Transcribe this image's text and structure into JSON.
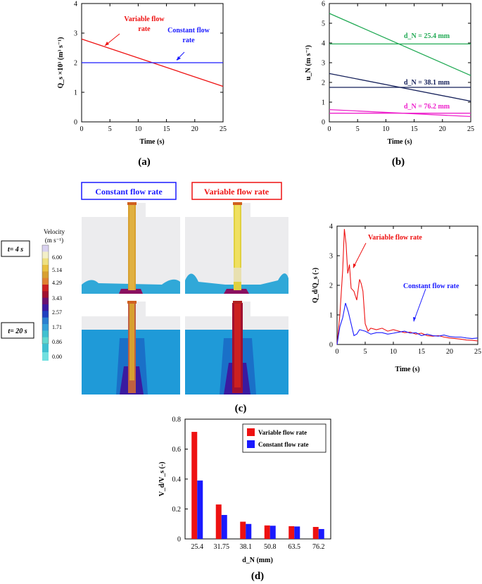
{
  "panels": {
    "a": {
      "label": "(a)"
    },
    "b": {
      "label": "(b)"
    },
    "c": {
      "label": "(c)"
    },
    "d": {
      "label": "(d)"
    }
  },
  "colors": {
    "red": "#ee1111",
    "blue": "#1a1aff",
    "green": "#22aa55",
    "navy": "#15205a",
    "magenta": "#ee22cc"
  },
  "chart_data": [
    {
      "id": "a",
      "type": "line",
      "ylabel": "Q_s ×10³ (m³ s⁻¹)",
      "xlabel": "Time (s)",
      "xlim": [
        0,
        25
      ],
      "ylim": [
        0,
        4
      ],
      "xticks": [
        "0",
        "5",
        "10",
        "15",
        "20",
        "25"
      ],
      "yticks": [
        "0",
        "1",
        "2",
        "3",
        "4"
      ],
      "series": [
        {
          "name": "Variable flow rate",
          "color": "#ee1111",
          "x": [
            0,
            25
          ],
          "y": [
            2.8,
            1.2
          ]
        },
        {
          "name": "Constant flow rate",
          "color": "#1a1aff",
          "x": [
            0,
            25
          ],
          "y": [
            2.0,
            2.0
          ]
        }
      ],
      "annotations": [
        {
          "line1": "Variable flow",
          "line2": "rate",
          "color": "#ee1111"
        },
        {
          "line1": "Constant flow",
          "line2": "rate",
          "color": "#1a1aff"
        }
      ]
    },
    {
      "id": "b",
      "type": "line",
      "ylabel": "u_N (m s⁻¹)",
      "xlabel": "Time (s)",
      "xlim": [
        0,
        25
      ],
      "ylim": [
        0,
        6
      ],
      "xticks": [
        "0",
        "5",
        "10",
        "15",
        "20",
        "25"
      ],
      "yticks": [
        "0",
        "1",
        "2",
        "3",
        "4",
        "5",
        "6"
      ],
      "series": [
        {
          "name": "25.4 variable",
          "color": "#22aa55",
          "x": [
            0,
            25
          ],
          "y": [
            5.5,
            2.35
          ]
        },
        {
          "name": "25.4 constant",
          "color": "#22aa55",
          "x": [
            0,
            25
          ],
          "y": [
            3.95,
            3.95
          ]
        },
        {
          "name": "38.1 variable",
          "color": "#15205a",
          "x": [
            0,
            25
          ],
          "y": [
            2.45,
            1.05
          ]
        },
        {
          "name": "38.1 constant",
          "color": "#15205a",
          "x": [
            0,
            25
          ],
          "y": [
            1.75,
            1.75
          ]
        },
        {
          "name": "76.2 variable",
          "color": "#ee22cc",
          "x": [
            0,
            25
          ],
          "y": [
            0.62,
            0.27
          ]
        },
        {
          "name": "76.2 constant",
          "color": "#ee22cc",
          "x": [
            0,
            25
          ],
          "y": [
            0.44,
            0.44
          ]
        }
      ],
      "annotations": [
        {
          "text": "d_N = 25.4 mm",
          "color": "#22aa55"
        },
        {
          "text": "d_N = 38.1 mm",
          "color": "#15205a"
        },
        {
          "text": "d_N = 76.2 mm",
          "color": "#ee22cc"
        }
      ]
    },
    {
      "id": "c",
      "type": "line",
      "ylabel": "Q_d/Q_s (-)",
      "xlabel": "Time (s)",
      "xlim": [
        0,
        25
      ],
      "ylim": [
        0,
        4
      ],
      "xticks": [
        "0",
        "5",
        "10",
        "15",
        "20",
        "25"
      ],
      "yticks": [
        "0",
        "1",
        "2",
        "3",
        "4"
      ],
      "series": [
        {
          "name": "Variable flow rate",
          "color": "#ee1111",
          "x": [
            0,
            0.5,
            1,
            1.3,
            1.6,
            1.9,
            2.2,
            2.5,
            3,
            3.5,
            4,
            4.3,
            4.6,
            5,
            5.5,
            6,
            7,
            8,
            9,
            10,
            11,
            12,
            13,
            14,
            15,
            16,
            17,
            18,
            19,
            20,
            21,
            22,
            23,
            24,
            25
          ],
          "y": [
            0,
            1.0,
            2.5,
            3.9,
            3.4,
            2.4,
            2.7,
            1.9,
            1.8,
            1.5,
            2.2,
            2.05,
            1.8,
            0.7,
            0.45,
            0.55,
            0.5,
            0.55,
            0.45,
            0.5,
            0.45,
            0.4,
            0.42,
            0.35,
            0.38,
            0.3,
            0.28,
            0.3,
            0.25,
            0.22,
            0.2,
            0.18,
            0.15,
            0.14,
            0.12
          ]
        },
        {
          "name": "Constant flow rate",
          "color": "#1a1aff",
          "x": [
            0,
            0.5,
            1,
            1.5,
            2,
            2.5,
            3,
            3.5,
            4,
            5,
            6,
            7,
            8,
            9,
            10,
            11,
            12,
            13,
            14,
            15,
            16,
            17,
            18,
            19,
            20,
            21,
            22,
            23,
            24,
            25
          ],
          "y": [
            0,
            0.6,
            0.9,
            1.4,
            1.1,
            0.7,
            0.3,
            0.35,
            0.5,
            0.45,
            0.35,
            0.4,
            0.4,
            0.35,
            0.38,
            0.42,
            0.45,
            0.38,
            0.4,
            0.3,
            0.35,
            0.3,
            0.28,
            0.32,
            0.27,
            0.25,
            0.25,
            0.22,
            0.2,
            0.22
          ]
        }
      ],
      "annotations": [
        {
          "text": "Variable flow rate",
          "color": "#ee1111"
        },
        {
          "text": "Constant flow rate",
          "color": "#1a1aff"
        }
      ]
    },
    {
      "id": "d",
      "type": "bar",
      "ylabel": "V_d/V_s (-)",
      "xlabel": "d_N (mm)",
      "categories": [
        "25.4",
        "31.75",
        "38.1",
        "50.8",
        "63.5",
        "76.2"
      ],
      "ylim": [
        0,
        0.8
      ],
      "yticks": [
        "0",
        "0.2",
        "0.4",
        "0.6",
        "0.8"
      ],
      "series": [
        {
          "name": "Variable flow rate",
          "color": "#ee1111",
          "values": [
            0.715,
            0.23,
            0.115,
            0.09,
            0.085,
            0.08
          ]
        },
        {
          "name": "Constant flow rate",
          "color": "#1a1aff",
          "values": [
            0.39,
            0.16,
            0.1,
            0.088,
            0.083,
            0.066
          ]
        }
      ],
      "legend": "top-right"
    }
  ],
  "simulation": {
    "title_constant": "Constant flow rate",
    "title_variable": "Variable flow rate",
    "row_labels": [
      "t= 4 s",
      "t= 20 s"
    ],
    "colorbar": {
      "title1": "Velocity",
      "title2": "(m s⁻¹)",
      "ticks": [
        "6.00",
        "5.14",
        "4.29",
        "3.43",
        "2.57",
        "1.71",
        "0.86",
        "0.00"
      ],
      "colors": [
        "#d9d2f0",
        "#f3efc8",
        "#eee080",
        "#e8c040",
        "#d8a030",
        "#e08030",
        "#cc2020",
        "#a01030",
        "#6a1070",
        "#3a1aa0",
        "#2040c0",
        "#2a7fd0",
        "#35a0d8",
        "#40c0d0",
        "#60d8d0"
      ]
    }
  }
}
